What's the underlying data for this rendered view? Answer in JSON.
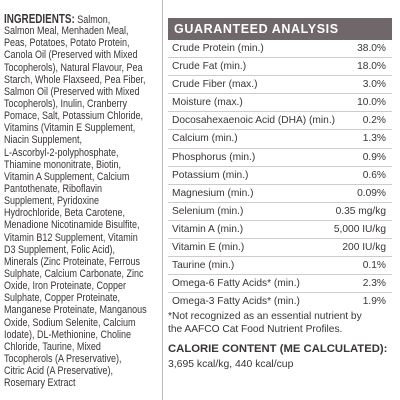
{
  "ingredients": {
    "heading": "INGREDIENTS:",
    "lines": [
      " Salmon,",
      "Salmon Meal, Menhaden Meal,",
      "Peas, Potatoes, Potato Protein,",
      "Canola Oil (Preserved with Mixed",
      "Tocopherols), Natural Flavour, Pea",
      "Starch, Whole Flaxseed, Pea Fiber,",
      "Salmon Oil (Preserved with Mixed",
      "Tocopherols), Inulin, Cranberry",
      "Pomace, Salt, Potassium Chloride,",
      "Vitamins (Vitamin E Supplement,",
      "Niacin Supplement,",
      "L-Ascorbyl-2-polyphosphate,",
      "Thiamine mononitrate, Biotin,",
      "Vitamin A Supplement, Calcium",
      "Pantothenate, Riboflavin",
      "Supplement, Pyridoxine",
      "Hydrochloride, Beta Carotene,",
      "Menadione Nicotinamide Bisulfite,",
      "Vitamin B12 Supplement, Vitamin",
      "D3 Supplement, Folic Acid),",
      "Minerals (Zinc Proteinate, Ferrous",
      "Sulphate, Calcium Carbonate, Zinc",
      "Oxide, Iron Proteinate, Copper",
      "Sulphate, Copper Proteinate,",
      "Manganese Proteinate, Manganous",
      "Oxide, Sodium Selenite, Calcium",
      "Iodate), DL-Methionine, Choline",
      "Chloride, Taurine, Mixed",
      "Tocopherols (A Preservative),",
      "Citric Acid (A Preservative),",
      "Rosemary Extract"
    ]
  },
  "analysis": {
    "title": "GUARANTEED ANALYSIS",
    "rows": [
      {
        "name": "Crude Protein (min.)",
        "value": "38.0%"
      },
      {
        "name": "Crude Fat (min.)",
        "value": "18.0%"
      },
      {
        "name": "Crude Fiber (max.)",
        "value": "3.0%"
      },
      {
        "name": "Moisture (max.)",
        "value": "10.0%"
      },
      {
        "name": "Docosahexaenoic Acid (DHA) (min.)",
        "value": "0.2%"
      },
      {
        "name": "Calcium (min.)",
        "value": "1.3%"
      },
      {
        "name": "Phosphorus (min.)",
        "value": "0.9%"
      },
      {
        "name": "Potassium (min.)",
        "value": "0.6%"
      },
      {
        "name": "Magnesium (min.)",
        "value": "0.09%"
      },
      {
        "name": "Selenium (min.)",
        "value": "0.35 mg/kg"
      },
      {
        "name": "Vitamin A (min.)",
        "value": "5,000 IU/kg"
      },
      {
        "name": "Vitamin E (min.)",
        "value": "200 IU/kg"
      },
      {
        "name": "Taurine (min.)",
        "value": "0.1%"
      },
      {
        "name": "Omega-6 Fatty Acids* (min.)",
        "value": "2.3%"
      },
      {
        "name": "Omega-3 Fatty Acids* (min.)",
        "value": "1.9%"
      }
    ]
  },
  "footnote": [
    "*Not recognized as an essential nutrient by",
    "the AAFCO Cat Food Nutrient Profiles."
  ],
  "calorie": {
    "heading": "CALORIE CONTENT (ME CALCULATED):",
    "text": "3,695 kcal/kg, 440 kcal/cup"
  }
}
